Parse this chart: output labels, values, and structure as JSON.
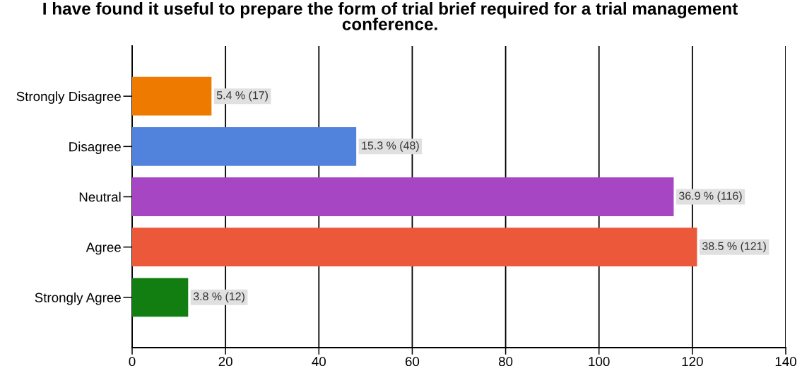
{
  "chart_data": {
    "type": "bar",
    "orientation": "horizontal",
    "title": "I have found it useful to prepare the form of trial brief required for a trial management conference.",
    "categories": [
      "Strongly Disagree",
      "Disagree",
      "Neutral",
      "Agree",
      "Strongly Agree"
    ],
    "values": [
      17,
      48,
      116,
      121,
      12
    ],
    "colors": [
      "#ef7a00",
      "#5283dc",
      "#a746c2",
      "#ec583a",
      "#127e12"
    ],
    "value_labels": [
      "5.4 % (17)",
      "15.3 % (48)",
      "36.9 % (116)",
      "38.5 % (121)",
      "3.8 % (12)"
    ],
    "xlim": [
      0,
      140
    ],
    "xticks": [
      0,
      20,
      40,
      60,
      80,
      100,
      120,
      140
    ],
    "grid": "x"
  }
}
